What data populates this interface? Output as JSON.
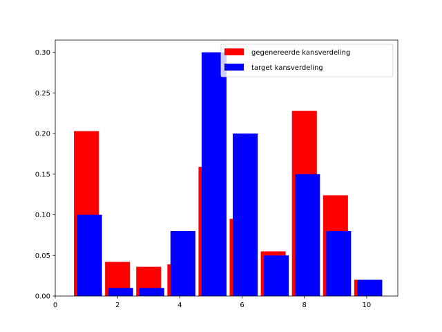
{
  "chart_data": {
    "type": "bar",
    "title": "",
    "xlabel": "",
    "ylabel": "",
    "xlim": [
      0,
      11
    ],
    "ylim": [
      0,
      0.315
    ],
    "x_ticks": [
      0,
      2,
      4,
      6,
      8,
      10
    ],
    "x_tick_labels": [
      "0",
      "2",
      "4",
      "6",
      "8",
      "10"
    ],
    "y_ticks": [
      0.0,
      0.05,
      0.1,
      0.15,
      0.2,
      0.25,
      0.3
    ],
    "y_tick_labels": [
      "0.00",
      "0.05",
      "0.10",
      "0.15",
      "0.20",
      "0.25",
      "0.30"
    ],
    "grid": false,
    "legend_position": "top-right",
    "x": [
      1,
      2,
      3,
      4,
      5,
      6,
      7,
      8,
      9,
      10
    ],
    "series": [
      {
        "name": "gegenereerde kansverdeling",
        "color": "#ff0000",
        "values": [
          0.203,
          0.042,
          0.036,
          0.039,
          0.159,
          0.095,
          0.055,
          0.228,
          0.124,
          0.02
        ]
      },
      {
        "name": "target kansverdeling",
        "color": "#0000ff",
        "values": [
          0.1,
          0.01,
          0.01,
          0.08,
          0.3,
          0.2,
          0.05,
          0.15,
          0.08,
          0.02
        ]
      }
    ]
  }
}
